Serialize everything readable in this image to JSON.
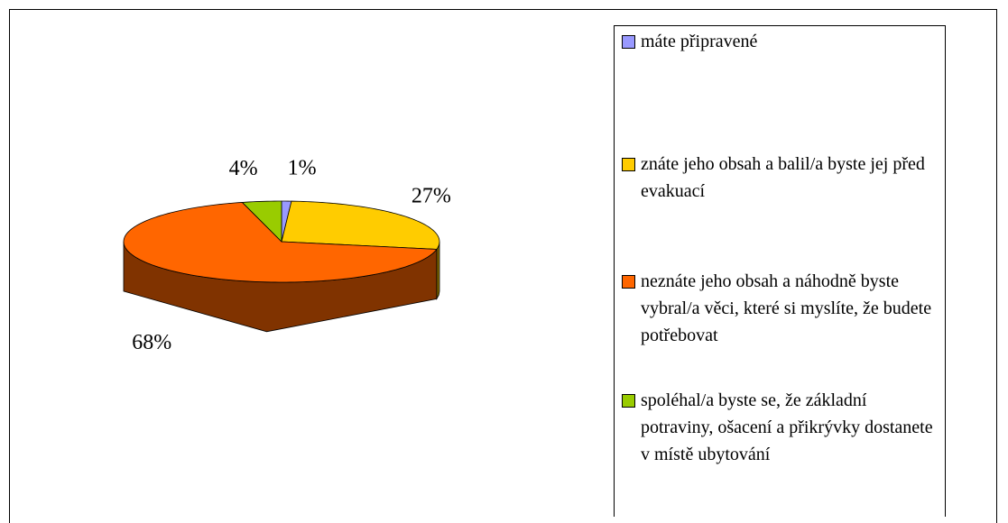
{
  "chart_data": {
    "type": "pie",
    "categories": [
      "máte připravené",
      "znáte jeho obsah a balil/a byste jej před evakuací",
      "neznáte jeho obsah a náhodně byste vybral/a věci, které si myslíte, že budete potřebovat",
      "spoléhal/a byste se, že základní potraviny, ošacení a přikrývky dostanete v místě ubytování"
    ],
    "values": [
      1,
      27,
      68,
      4
    ],
    "value_labels": [
      "1%",
      "27%",
      "68%",
      "4%"
    ],
    "colors": [
      "#9999ff",
      "#ffcc00",
      "#ff6600",
      "#99cc00"
    ]
  }
}
